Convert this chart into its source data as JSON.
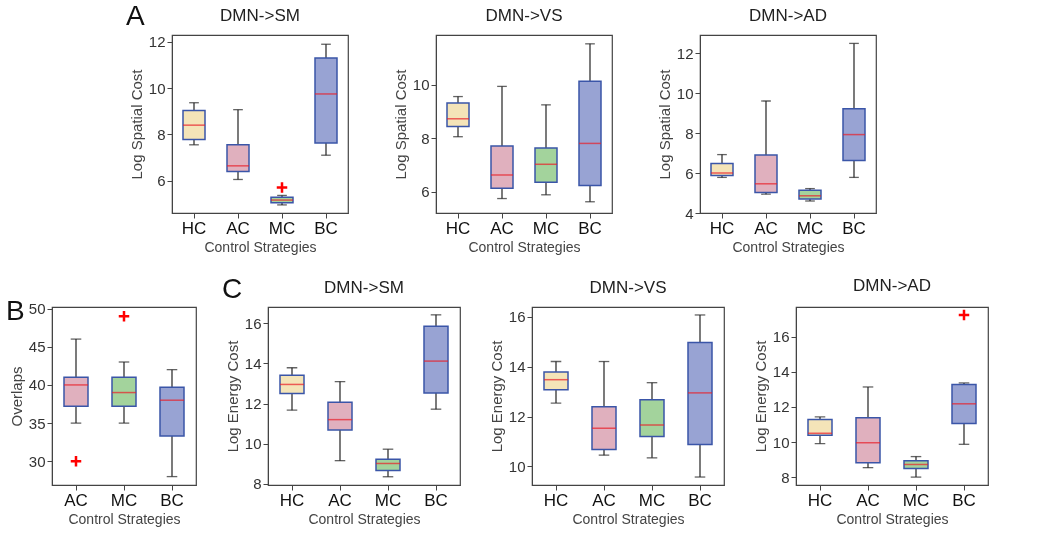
{
  "chart_data": [
    {
      "type": "box",
      "title": "DMN->SM",
      "xlabel": "Control Strategies",
      "ylabel": "Log Spatial Cost",
      "annotations": [
        "A"
      ],
      "categories": [
        "HC",
        "AC",
        "MC",
        "BC"
      ],
      "colors": [
        "#f4e4b8",
        "#e0b0be",
        "#a3d39c",
        "#98a3d3"
      ],
      "ylim": [
        4.6,
        12.3
      ],
      "yticks": [
        6,
        8,
        10,
        12
      ],
      "boxes": [
        {
          "low": 7.55,
          "q1": 7.78,
          "median": 8.4,
          "q3": 9.03,
          "high": 9.37
        },
        {
          "low": 6.05,
          "q1": 6.4,
          "median": 6.64,
          "q3": 7.55,
          "high": 9.07
        },
        {
          "low": 4.95,
          "q1": 5.04,
          "median": 5.16,
          "q3": 5.28,
          "high": 5.36,
          "outliers": [
            5.7
          ]
        },
        {
          "low": 7.1,
          "q1": 7.63,
          "median": 9.75,
          "q3": 11.3,
          "high": 11.9
        }
      ]
    },
    {
      "type": "box",
      "title": "DMN->VS",
      "xlabel": "Control Strategies",
      "ylabel": "Log Spatial Cost",
      "categories": [
        "HC",
        "AC",
        "MC",
        "BC"
      ],
      "colors": [
        "#f4e4b8",
        "#e0b0be",
        "#a3d39c",
        "#98a3d3"
      ],
      "ylim": [
        5.2,
        11.85
      ],
      "yticks": [
        6,
        8,
        10
      ],
      "boxes": [
        {
          "low": 8.05,
          "q1": 8.43,
          "median": 8.72,
          "q3": 9.31,
          "high": 9.55
        },
        {
          "low": 5.74,
          "q1": 6.12,
          "median": 6.62,
          "q3": 7.7,
          "high": 9.93
        },
        {
          "low": 5.88,
          "q1": 6.35,
          "median": 7.02,
          "q3": 7.63,
          "high": 9.24
        },
        {
          "low": 5.62,
          "q1": 6.23,
          "median": 7.8,
          "q3": 10.12,
          "high": 11.52
        }
      ]
    },
    {
      "type": "box",
      "title": "DMN->AD",
      "xlabel": "Control Strategies",
      "ylabel": "Log Spatial Cost",
      "categories": [
        "HC",
        "AC",
        "MC",
        "BC"
      ],
      "colors": [
        "#f4e4b8",
        "#e0b0be",
        "#a3d39c",
        "#98a3d3"
      ],
      "ylim": [
        4,
        12.9
      ],
      "yticks": [
        4,
        6,
        8,
        10,
        12
      ],
      "boxes": [
        {
          "low": 5.78,
          "q1": 5.87,
          "median": 6.0,
          "q3": 6.48,
          "high": 6.92
        },
        {
          "low": 4.94,
          "q1": 5.02,
          "median": 5.46,
          "q3": 6.9,
          "high": 9.6
        },
        {
          "low": 4.6,
          "q1": 4.7,
          "median": 4.86,
          "q3": 5.14,
          "high": 5.22
        },
        {
          "low": 5.78,
          "q1": 6.63,
          "median": 7.92,
          "q3": 9.21,
          "high": 12.48
        }
      ]
    },
    {
      "type": "box",
      "xlabel": "Control Strategies",
      "ylabel": "Overlaps",
      "annotations": [
        "B"
      ],
      "categories": [
        "AC",
        "MC",
        "BC"
      ],
      "colors": [
        "#e0b0be",
        "#a3d39c",
        "#98a3d3"
      ],
      "ylim": [
        26.9,
        50.2
      ],
      "yticks": [
        30,
        35,
        40,
        45,
        50
      ],
      "boxes": [
        {
          "low": 35,
          "q1": 37.2,
          "median": 40,
          "q3": 41,
          "high": 46,
          "outliers": [
            30
          ]
        },
        {
          "low": 35,
          "q1": 37.2,
          "median": 39,
          "q3": 41,
          "high": 43,
          "outliers": [
            49
          ]
        },
        {
          "low": 28,
          "q1": 33.3,
          "median": 38,
          "q3": 39.7,
          "high": 42
        }
      ]
    },
    {
      "type": "box",
      "title": "DMN->SM",
      "xlabel": "Control Strategies",
      "ylabel": "Log Energy Cost",
      "annotations": [
        "C"
      ],
      "categories": [
        "HC",
        "AC",
        "MC",
        "BC"
      ],
      "colors": [
        "#f4e4b8",
        "#e0b0be",
        "#a3d39c",
        "#98a3d3"
      ],
      "ylim": [
        7.95,
        16.8
      ],
      "yticks": [
        8,
        10,
        12,
        14,
        16
      ],
      "boxes": [
        {
          "low": 11.67,
          "q1": 12.5,
          "median": 12.95,
          "q3": 13.41,
          "high": 13.78
        },
        {
          "low": 9.16,
          "q1": 10.69,
          "median": 11.2,
          "q3": 12.06,
          "high": 13.09
        },
        {
          "low": 8.36,
          "q1": 8.67,
          "median": 9.02,
          "q3": 9.23,
          "high": 9.73
        },
        {
          "low": 11.72,
          "q1": 12.53,
          "median": 14.11,
          "q3": 15.84,
          "high": 16.41
        }
      ]
    },
    {
      "type": "box",
      "title": "DMN->VS",
      "xlabel": "Control Strategies",
      "ylabel": "Log Energy Cost",
      "categories": [
        "HC",
        "AC",
        "MC",
        "BC"
      ],
      "colors": [
        "#f4e4b8",
        "#e0b0be",
        "#a3d39c",
        "#98a3d3"
      ],
      "ylim": [
        9.25,
        16.4
      ],
      "yticks": [
        10,
        12,
        14,
        16
      ],
      "boxes": [
        {
          "low": 12.54,
          "q1": 13.08,
          "median": 13.48,
          "q3": 13.79,
          "high": 14.21
        },
        {
          "low": 10.45,
          "q1": 10.68,
          "median": 11.53,
          "q3": 12.39,
          "high": 14.21
        },
        {
          "low": 10.34,
          "q1": 11.2,
          "median": 11.66,
          "q3": 12.67,
          "high": 13.36
        },
        {
          "low": 9.57,
          "q1": 10.88,
          "median": 12.95,
          "q3": 14.97,
          "high": 16.08
        }
      ]
    },
    {
      "type": "box",
      "title": "DMN->AD",
      "xlabel": "Control Strategies",
      "ylabel": "Log Energy Cost",
      "categories": [
        "HC",
        "AC",
        "MC",
        "BC"
      ],
      "colors": [
        "#f4e4b8",
        "#e0b0be",
        "#a3d39c",
        "#98a3d3"
      ],
      "ylim": [
        7.55,
        17.7
      ],
      "yticks": [
        8,
        10,
        12,
        14,
        16
      ],
      "boxes": [
        {
          "low": 9.91,
          "q1": 10.38,
          "median": 10.5,
          "q3": 11.29,
          "high": 11.43
        },
        {
          "low": 8.54,
          "q1": 8.82,
          "median": 9.96,
          "q3": 11.38,
          "high": 13.14
        },
        {
          "low": 8.0,
          "q1": 8.49,
          "median": 8.72,
          "q3": 8.93,
          "high": 9.17
        },
        {
          "low": 9.87,
          "q1": 11.05,
          "median": 12.18,
          "q3": 13.28,
          "high": 13.37,
          "outliers": [
            17.25
          ]
        }
      ]
    }
  ]
}
